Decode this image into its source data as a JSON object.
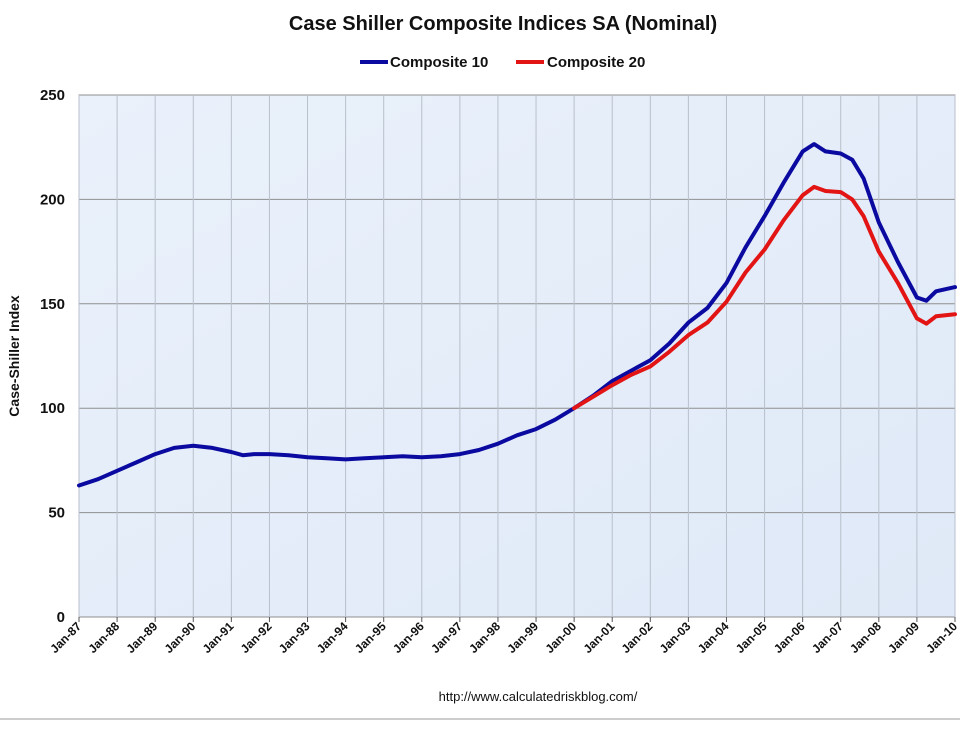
{
  "chart_data": {
    "type": "line",
    "title": "Case Shiller Composite Indices SA (Nominal)",
    "ylabel": "Case-Shiller Index",
    "xlabel": "",
    "ylim": [
      0,
      250
    ],
    "yticks": [
      0,
      50,
      100,
      150,
      200,
      250
    ],
    "xlim": [
      1987.0,
      2010.0
    ],
    "x_ticks": [
      {
        "x": 1987,
        "label": "Jan-87"
      },
      {
        "x": 1988,
        "label": "Jan-88"
      },
      {
        "x": 1989,
        "label": "Jan-89"
      },
      {
        "x": 1990,
        "label": "Jan-90"
      },
      {
        "x": 1991,
        "label": "Jan-91"
      },
      {
        "x": 1992,
        "label": "Jan-92"
      },
      {
        "x": 1993,
        "label": "Jan-93"
      },
      {
        "x": 1994,
        "label": "Jan-94"
      },
      {
        "x": 1995,
        "label": "Jan-95"
      },
      {
        "x": 1996,
        "label": "Jan-96"
      },
      {
        "x": 1997,
        "label": "Jan-97"
      },
      {
        "x": 1998,
        "label": "Jan-98"
      },
      {
        "x": 1999,
        "label": "Jan-99"
      },
      {
        "x": 2000,
        "label": "Jan-00"
      },
      {
        "x": 2001,
        "label": "Jan-01"
      },
      {
        "x": 2002,
        "label": "Jan-02"
      },
      {
        "x": 2003,
        "label": "Jan-03"
      },
      {
        "x": 2004,
        "label": "Jan-04"
      },
      {
        "x": 2005,
        "label": "Jan-05"
      },
      {
        "x": 2006,
        "label": "Jan-06"
      },
      {
        "x": 2007,
        "label": "Jan-07"
      },
      {
        "x": 2008,
        "label": "Jan-08"
      },
      {
        "x": 2009,
        "label": "Jan-09"
      },
      {
        "x": 2010,
        "label": "Jan-10"
      }
    ],
    "legend_position": "top-center",
    "grid": true,
    "source": "http://www.calculatedriskblog.com/",
    "series": [
      {
        "name": "Composite 10",
        "color": "#0a0aa0",
        "points": [
          [
            1987.0,
            63
          ],
          [
            1987.5,
            66
          ],
          [
            1988.0,
            70
          ],
          [
            1988.5,
            74
          ],
          [
            1989.0,
            78
          ],
          [
            1989.5,
            81
          ],
          [
            1990.0,
            82
          ],
          [
            1990.5,
            81
          ],
          [
            1991.0,
            79
          ],
          [
            1991.3,
            77.5
          ],
          [
            1991.6,
            78
          ],
          [
            1992.0,
            78
          ],
          [
            1992.5,
            77.5
          ],
          [
            1993.0,
            76.5
          ],
          [
            1993.5,
            76
          ],
          [
            1994.0,
            75.5
          ],
          [
            1994.5,
            76
          ],
          [
            1995.0,
            76.5
          ],
          [
            1995.5,
            77
          ],
          [
            1996.0,
            76.5
          ],
          [
            1996.5,
            77
          ],
          [
            1997.0,
            78
          ],
          [
            1997.5,
            80
          ],
          [
            1998.0,
            83
          ],
          [
            1998.5,
            87
          ],
          [
            1999.0,
            90
          ],
          [
            1999.5,
            94.5
          ],
          [
            2000.0,
            100
          ],
          [
            2000.5,
            106
          ],
          [
            2001.0,
            113
          ],
          [
            2001.5,
            118
          ],
          [
            2002.0,
            123
          ],
          [
            2002.5,
            131
          ],
          [
            2003.0,
            141
          ],
          [
            2003.5,
            148
          ],
          [
            2004.0,
            160
          ],
          [
            2004.5,
            177
          ],
          [
            2005.0,
            192
          ],
          [
            2005.5,
            208
          ],
          [
            2006.0,
            223
          ],
          [
            2006.3,
            226.5
          ],
          [
            2006.6,
            223
          ],
          [
            2007.0,
            222
          ],
          [
            2007.3,
            219
          ],
          [
            2007.6,
            210
          ],
          [
            2008.0,
            189
          ],
          [
            2008.5,
            170
          ],
          [
            2009.0,
            153
          ],
          [
            2009.25,
            151.5
          ],
          [
            2009.5,
            156
          ],
          [
            2010.0,
            158
          ]
        ]
      },
      {
        "name": "Composite 20",
        "color": "#e31414",
        "points": [
          [
            2000.0,
            100
          ],
          [
            2000.5,
            105.5
          ],
          [
            2001.0,
            111
          ],
          [
            2001.5,
            116
          ],
          [
            2002.0,
            120
          ],
          [
            2002.5,
            127
          ],
          [
            2003.0,
            135
          ],
          [
            2003.5,
            141
          ],
          [
            2004.0,
            151
          ],
          [
            2004.5,
            165
          ],
          [
            2005.0,
            176
          ],
          [
            2005.5,
            190
          ],
          [
            2006.0,
            202
          ],
          [
            2006.3,
            206
          ],
          [
            2006.6,
            204
          ],
          [
            2007.0,
            203.5
          ],
          [
            2007.3,
            200
          ],
          [
            2007.6,
            192
          ],
          [
            2008.0,
            175
          ],
          [
            2008.5,
            160
          ],
          [
            2009.0,
            143
          ],
          [
            2009.25,
            140.5
          ],
          [
            2009.5,
            144
          ],
          [
            2010.0,
            145
          ]
        ]
      }
    ]
  }
}
